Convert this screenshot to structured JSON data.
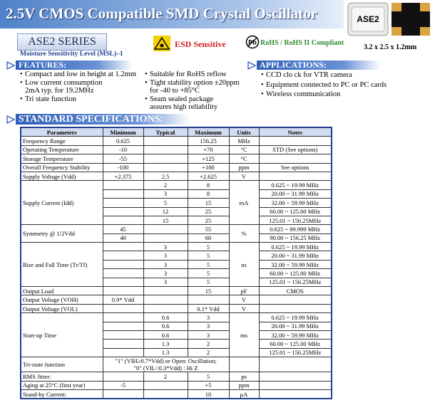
{
  "header": {
    "title": "2.5V CMOS Compatible SMD Crystal Oscillator",
    "chip_label": "ASE2",
    "dimensions": "3.2 x 2.5 x 1.2mm"
  },
  "badges": {
    "series": "ASE2 SERIES",
    "esd": "ESD Sensitive",
    "pb": "Pb",
    "rohs": "RoHS / RoHS II Compliant"
  },
  "msl": "Moisture Sensitivity Level (MSL)–1",
  "features": {
    "title": "FEATURES:",
    "column1": [
      [
        "Compact and low in height at 1.2mm"
      ],
      [
        "Low current consumption",
        "2mA typ. for 19.2MHz"
      ],
      [
        "Tri state function"
      ]
    ],
    "column2": [
      [
        "Suitable for RoHS reflow"
      ],
      [
        "Tight stability option ±20ppm",
        "for -40 to +85°C"
      ],
      [
        "Seam sealed package",
        "assures high reliability"
      ]
    ]
  },
  "applications": {
    "title": "APPLICATIONS:",
    "items": [
      "CCD clo ck for VTR camera",
      "Equipment connected to PC or PC cards",
      "Wireless communication"
    ]
  },
  "specifications": {
    "title": "STANDARD SPECIFICATIONS:",
    "table": {
      "header": [
        "Parameters",
        "Minimum",
        "Typical",
        "Maximum",
        "Units",
        "Notes"
      ],
      "rows": [
        {
          "parameter": "Frequency Range",
          "unit": "MHz",
          "sub": [
            {
              "min": "0.625",
              "max": "156.25"
            }
          ]
        },
        {
          "parameter": "Operating Temperature",
          "unit": "°C",
          "sub": [
            {
              "min": "-10",
              "max": "+70",
              "notes": "STD (See options)"
            }
          ]
        },
        {
          "parameter": "Storage Temperature",
          "unit": "°C",
          "sub": [
            {
              "min": "-55",
              "max": "+125"
            }
          ]
        },
        {
          "parameter": "Overall Frequency Stability",
          "unit": "ppm",
          "sub": [
            {
              "min": "-100",
              "max": "+100",
              "notes": "See options"
            }
          ]
        },
        {
          "parameter": "Supply Voltage (Vdd)",
          "unit": "V",
          "sub": [
            {
              "min": "+2.375",
              "typ": "2.5",
              "max": "+2.625"
            }
          ]
        },
        {
          "parameter": "Supply Current (Idd)",
          "unit": "mA",
          "sub": [
            {
              "typ": "2",
              "max": "8",
              "notes": "0.625 ~ 19.99 MHz"
            },
            {
              "typ": "3",
              "max": "8",
              "notes": "20.00 ~ 31.99 MHz"
            },
            {
              "typ": "5",
              "max": "15",
              "notes": "32.00 ~ 59.99 MHz"
            },
            {
              "typ": "12",
              "max": "25",
              "notes": "60.00 ~ 125.00 MHz"
            },
            {
              "typ": "15",
              "max": "25",
              "notes": "125.01 ~ 156.25MHz"
            }
          ]
        },
        {
          "parameter": "Symmetry @ 1/2Vdd",
          "unit": "%",
          "sub": [
            {
              "min": "45",
              "max": "55",
              "notes": "0.625 ~ 89.999 MHz"
            },
            {
              "min": "40",
              "max": "60",
              "notes": "90.00 ~ 156.25 MHz"
            }
          ]
        },
        {
          "parameter": "Rise and Fall Time (Tr/Tf)",
          "unit": "ns",
          "sub": [
            {
              "typ": "3",
              "max": "5",
              "notes": "0.625 ~ 19.99 MHz"
            },
            {
              "typ": "3",
              "max": "5",
              "notes": "20.00 ~ 31.99 MHz"
            },
            {
              "typ": "3",
              "max": "5",
              "notes": "32.00 ~ 59.99 MHz"
            },
            {
              "typ": "3",
              "max": "5",
              "notes": "60.00 ~ 125.00 MHz"
            },
            {
              "typ": "3",
              "max": "5",
              "notes": "125.01 ~ 156.25MHz"
            }
          ]
        },
        {
          "parameter": "Output Load",
          "unit": "pF",
          "sub": [
            {
              "max": "15",
              "notes": "CMOS"
            }
          ]
        },
        {
          "parameter": "Output Voltage (VOH)",
          "unit": "V",
          "sub": [
            {
              "min": "0.9* Vdd"
            }
          ]
        },
        {
          "parameter": "Output Voltage (VOL)",
          "unit": "V",
          "sub": [
            {
              "max": "0.1* Vdd"
            }
          ]
        },
        {
          "parameter": "Start-up Time",
          "unit": "ms",
          "sub": [
            {
              "typ": "0.6",
              "max": "3",
              "notes": "0.625 ~ 19.99 MHz"
            },
            {
              "typ": "0.6",
              "max": "3",
              "notes": "20.00 ~ 31.99 MHz"
            },
            {
              "typ": "0.6",
              "max": "3",
              "notes": "32.00 ~ 59.99 MHz"
            },
            {
              "typ": "1.3",
              "max": "2",
              "notes": "60.00 ~ 125.00 MHz"
            },
            {
              "typ": "1.3",
              "max": "2",
              "notes": "125.01 ~ 156.25MHz"
            }
          ]
        },
        {
          "parameter": "Tri-state function",
          "sub": [
            {
              "span": [
                "\"1\" (VIH≥0.7*Vdd) or Open: Oscillation;",
                "\"0\" (VIL<0.3*Vdd) : Hi Z"
              ]
            }
          ]
        },
        {
          "parameter": "RMS Jitter:",
          "unit": "ps",
          "sub": [
            {
              "typ": "2",
              "max": "5"
            }
          ]
        },
        {
          "parameter": "Aging at 25°C (first year)",
          "unit": "ppm",
          "sub": [
            {
              "min": "-5",
              "max": "+5"
            }
          ]
        },
        {
          "parameter": "Stand-by Current:",
          "unit": "μA",
          "sub": [
            {
              "max": "10"
            }
          ]
        }
      ]
    }
  }
}
